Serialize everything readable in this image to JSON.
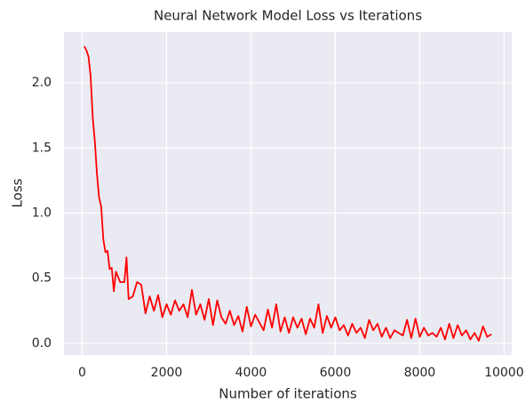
{
  "chart_data": {
    "type": "line",
    "title": "Neural Network Model Loss vs Iterations",
    "x_label": "Number of iterations",
    "y_label": "Loss",
    "x": [
      50,
      100,
      150,
      200,
      250,
      300,
      350,
      400,
      450,
      500,
      550,
      600,
      650,
      700,
      750,
      800,
      900,
      1000,
      1050,
      1100,
      1200,
      1300,
      1400,
      1500,
      1600,
      1700,
      1800,
      1900,
      2000,
      2100,
      2200,
      2300,
      2400,
      2500,
      2600,
      2700,
      2800,
      2900,
      3000,
      3100,
      3200,
      3300,
      3400,
      3500,
      3600,
      3700,
      3800,
      3900,
      4000,
      4100,
      4200,
      4300,
      4400,
      4500,
      4600,
      4700,
      4800,
      4900,
      5000,
      5100,
      5200,
      5300,
      5400,
      5500,
      5600,
      5700,
      5800,
      5900,
      6000,
      6100,
      6200,
      6300,
      6400,
      6500,
      6600,
      6700,
      6800,
      6900,
      7000,
      7100,
      7200,
      7300,
      7400,
      7500,
      7600,
      7700,
      7800,
      7900,
      8000,
      8100,
      8200,
      8300,
      8400,
      8500,
      8600,
      8700,
      8800,
      8900,
      9000,
      9100,
      9200,
      9300,
      9400,
      9500,
      9600,
      9700
    ],
    "series": [
      {
        "name": "Loss",
        "color": "#ff0000",
        "values": [
          2.28,
          2.25,
          2.2,
          2.05,
          1.73,
          1.55,
          1.3,
          1.12,
          1.05,
          0.8,
          0.7,
          0.71,
          0.57,
          0.58,
          0.4,
          0.55,
          0.47,
          0.47,
          0.66,
          0.34,
          0.36,
          0.47,
          0.45,
          0.23,
          0.36,
          0.25,
          0.37,
          0.2,
          0.3,
          0.22,
          0.33,
          0.25,
          0.3,
          0.2,
          0.41,
          0.22,
          0.3,
          0.18,
          0.34,
          0.14,
          0.33,
          0.2,
          0.15,
          0.25,
          0.14,
          0.21,
          0.09,
          0.28,
          0.13,
          0.22,
          0.16,
          0.1,
          0.26,
          0.12,
          0.3,
          0.09,
          0.2,
          0.08,
          0.2,
          0.12,
          0.19,
          0.07,
          0.19,
          0.12,
          0.3,
          0.08,
          0.21,
          0.12,
          0.2,
          0.1,
          0.14,
          0.06,
          0.15,
          0.08,
          0.12,
          0.04,
          0.18,
          0.1,
          0.15,
          0.05,
          0.12,
          0.04,
          0.1,
          0.08,
          0.06,
          0.18,
          0.04,
          0.19,
          0.05,
          0.12,
          0.06,
          0.08,
          0.05,
          0.12,
          0.03,
          0.15,
          0.04,
          0.14,
          0.06,
          0.1,
          0.03,
          0.08,
          0.02,
          0.13,
          0.05,
          0.07
        ]
      }
    ],
    "xlim": [
      -432,
      10182
    ],
    "xticks": [
      0,
      2000,
      4000,
      6000,
      8000,
      10000
    ],
    "ylim": [
      -0.09,
      2.39
    ],
    "yticks": [
      {
        "value": 0,
        "label": "0.0"
      },
      0.5,
      {
        "value": 1,
        "label": "1.0"
      },
      1.5,
      {
        "value": 2,
        "label": "2.0"
      }
    ],
    "grid": true
  }
}
